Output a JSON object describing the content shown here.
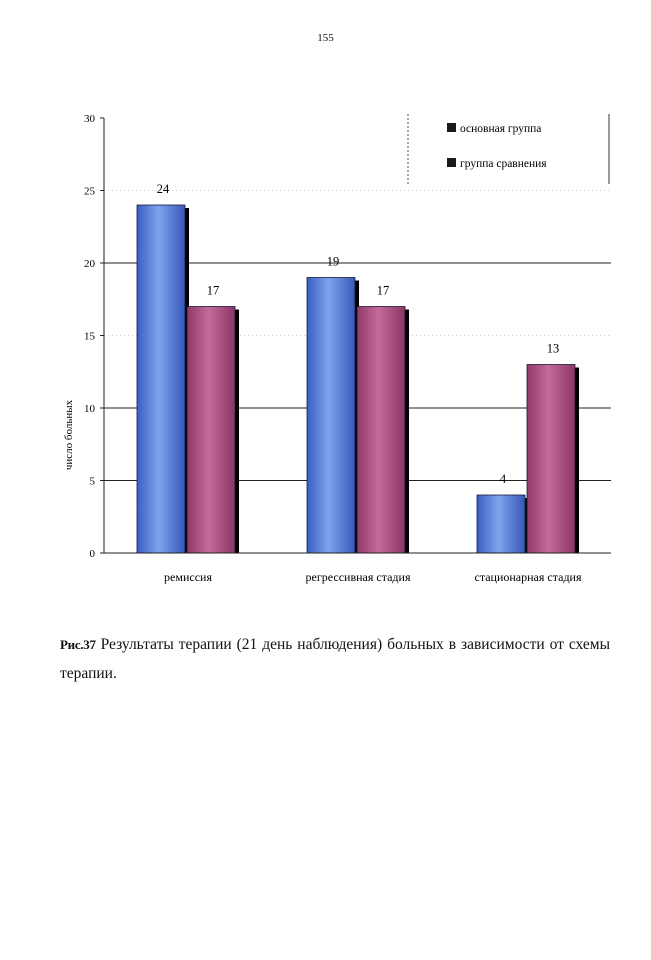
{
  "page_number": "155",
  "caption": {
    "figure_label": "Рис.37",
    "text": " Результаты терапии (21 день наблюдения) больных в зависимости от схемы терапии."
  },
  "colors": {
    "main": "#4f78d6",
    "comparison": "#a64a7c"
  },
  "chart_data": {
    "type": "bar",
    "categories": [
      "ремиссия",
      "регрессивная стадия",
      "стационарная стадия"
    ],
    "series": [
      {
        "name": "основная группа",
        "values": [
          24,
          19,
          4
        ]
      },
      {
        "name": "группа сравнения",
        "values": [
          17,
          17,
          13
        ]
      }
    ],
    "title": "",
    "xlabel": "",
    "ylabel": "число больных",
    "ylim": [
      0,
      30
    ],
    "yticks": [
      0,
      5,
      10,
      15,
      20,
      25,
      30
    ],
    "grid": true,
    "legend_position": "top-right"
  }
}
